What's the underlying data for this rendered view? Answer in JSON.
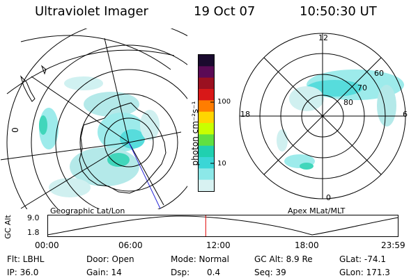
{
  "header": {
    "title": "Ultraviolet Imager",
    "date": "19 Oct 07",
    "time": "10:50:30 UT"
  },
  "colorbar": {
    "unit_label": "photon cm⁻²s⁻¹",
    "ticks": [
      "100",
      "10"
    ],
    "colors": [
      "#1a0a2e",
      "#5a0a55",
      "#9a1020",
      "#d81818",
      "#ff7d00",
      "#ffd500",
      "#c8ff00",
      "#60e040",
      "#20d0b0",
      "#3ad6d6",
      "#8ce8e8",
      "#d8f2f2"
    ]
  },
  "left_panel": {
    "caption": "Geographic Lat/Lon",
    "edge_label": "0"
  },
  "right_panel": {
    "caption": "Apex MLat/MLT",
    "mlt_labels": {
      "top": "12",
      "left": "18",
      "right": "6",
      "bottom": "0"
    },
    "lat_labels": [
      "60",
      "70",
      "80"
    ]
  },
  "timeline": {
    "ylabel": "GC Alt",
    "ymax": "9.0",
    "ymin": "1.8",
    "ticks": [
      "00:00",
      "06:00",
      "12:00",
      "18:00",
      "23:59"
    ],
    "current_time_fraction": 0.451
  },
  "info": {
    "filter": "Flt: LBHL",
    "ip": "IP: 36.0",
    "door": "Door: Open",
    "gain": "Gain: 14",
    "mode": "Mode: Normal",
    "dsp_label": "Dsp:",
    "dsp_value": "0.4",
    "gc_alt": "GC Alt: 8.9 Re",
    "seq": "Seq: 39",
    "glat": "GLat: -74.1",
    "glon": "GLon: 171.3"
  }
}
